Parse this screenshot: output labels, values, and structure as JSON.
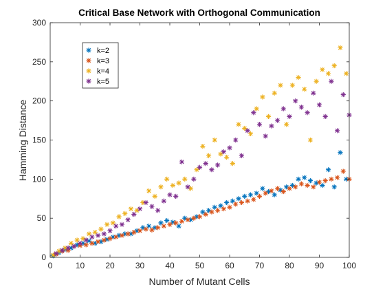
{
  "chart_data": {
    "type": "scatter",
    "title": "Critical Base Network with Orthogonal Communication",
    "xlabel": "Number of Mutant Cells",
    "ylabel": "Hamming Distance",
    "xlim": [
      0,
      100
    ],
    "ylim": [
      0,
      300
    ],
    "xticks": [
      0,
      10,
      20,
      30,
      40,
      50,
      60,
      70,
      80,
      90,
      100
    ],
    "yticks": [
      0,
      50,
      100,
      150,
      200,
      250,
      300
    ],
    "grid": false,
    "legend_position": "top-left",
    "marker": "*",
    "series": [
      {
        "name": "k=2",
        "color": "#0072BD",
        "x": [
          1,
          3,
          5,
          7,
          9,
          11,
          13,
          15,
          17,
          19,
          21,
          23,
          25,
          27,
          29,
          31,
          33,
          35,
          37,
          39,
          41,
          43,
          45,
          47,
          49,
          51,
          53,
          55,
          57,
          59,
          61,
          63,
          65,
          67,
          69,
          71,
          73,
          75,
          77,
          79,
          81,
          83,
          85,
          87,
          89,
          91,
          93,
          95,
          97,
          99
        ],
        "y": [
          2,
          6,
          10,
          12,
          16,
          18,
          21,
          18,
          20,
          23,
          26,
          28,
          30,
          30,
          34,
          38,
          40,
          38,
          44,
          47,
          45,
          40,
          50,
          48,
          52,
          58,
          60,
          64,
          66,
          70,
          72,
          75,
          78,
          80,
          82,
          88,
          84,
          80,
          86,
          90,
          92,
          100,
          102,
          98,
          95,
          92,
          112,
          90,
          134,
          100
        ]
      },
      {
        "name": "k=3",
        "color": "#D95319",
        "x": [
          2,
          4,
          6,
          8,
          10,
          12,
          14,
          16,
          18,
          20,
          22,
          24,
          26,
          28,
          30,
          32,
          34,
          36,
          38,
          40,
          42,
          44,
          46,
          48,
          50,
          52,
          54,
          56,
          58,
          60,
          62,
          64,
          66,
          68,
          70,
          72,
          74,
          76,
          78,
          80,
          82,
          84,
          86,
          88,
          90,
          92,
          94,
          96,
          98,
          100
        ],
        "y": [
          4,
          8,
          9,
          14,
          15,
          16,
          18,
          20,
          22,
          24,
          26,
          28,
          30,
          32,
          34,
          36,
          35,
          38,
          40,
          42,
          44,
          46,
          48,
          50,
          52,
          55,
          58,
          60,
          62,
          64,
          68,
          70,
          72,
          74,
          78,
          82,
          85,
          88,
          84,
          88,
          90,
          94,
          92,
          90,
          96,
          98,
          100,
          102,
          110,
          100
        ]
      },
      {
        "name": "k=4",
        "color": "#EDB120",
        "x": [
          1,
          3,
          5,
          7,
          9,
          11,
          13,
          15,
          17,
          19,
          21,
          23,
          25,
          27,
          29,
          31,
          33,
          35,
          37,
          39,
          41,
          43,
          45,
          47,
          49,
          51,
          53,
          55,
          57,
          59,
          61,
          63,
          65,
          67,
          69,
          71,
          73,
          75,
          77,
          79,
          81,
          83,
          85,
          87,
          89,
          91,
          93,
          95,
          97,
          99
        ],
        "y": [
          3,
          8,
          12,
          18,
          22,
          24,
          30,
          32,
          36,
          42,
          44,
          52,
          56,
          62,
          60,
          70,
          85,
          78,
          90,
          100,
          92,
          95,
          100,
          88,
          112,
          142,
          130,
          150,
          132,
          128,
          120,
          170,
          165,
          158,
          190,
          205,
          180,
          210,
          220,
          170,
          220,
          230,
          215,
          150,
          225,
          240,
          235,
          245,
          268,
          235
        ]
      },
      {
        "name": "k=5",
        "color": "#7E2F8E",
        "x": [
          2,
          4,
          6,
          8,
          10,
          12,
          14,
          16,
          18,
          20,
          22,
          24,
          26,
          28,
          30,
          32,
          34,
          36,
          38,
          40,
          42,
          44,
          46,
          48,
          50,
          52,
          54,
          56,
          58,
          60,
          62,
          64,
          66,
          68,
          70,
          72,
          74,
          76,
          78,
          80,
          82,
          84,
          86,
          88,
          90,
          92,
          94,
          96,
          98,
          100
        ],
        "y": [
          5,
          9,
          12,
          14,
          18,
          22,
          26,
          28,
          30,
          34,
          40,
          42,
          48,
          55,
          62,
          70,
          65,
          60,
          72,
          80,
          78,
          122,
          90,
          100,
          115,
          120,
          112,
          118,
          135,
          140,
          150,
          130,
          162,
          185,
          170,
          155,
          168,
          175,
          190,
          180,
          200,
          192,
          185,
          210,
          195,
          180,
          225,
          162,
          208,
          182
        ]
      }
    ]
  }
}
